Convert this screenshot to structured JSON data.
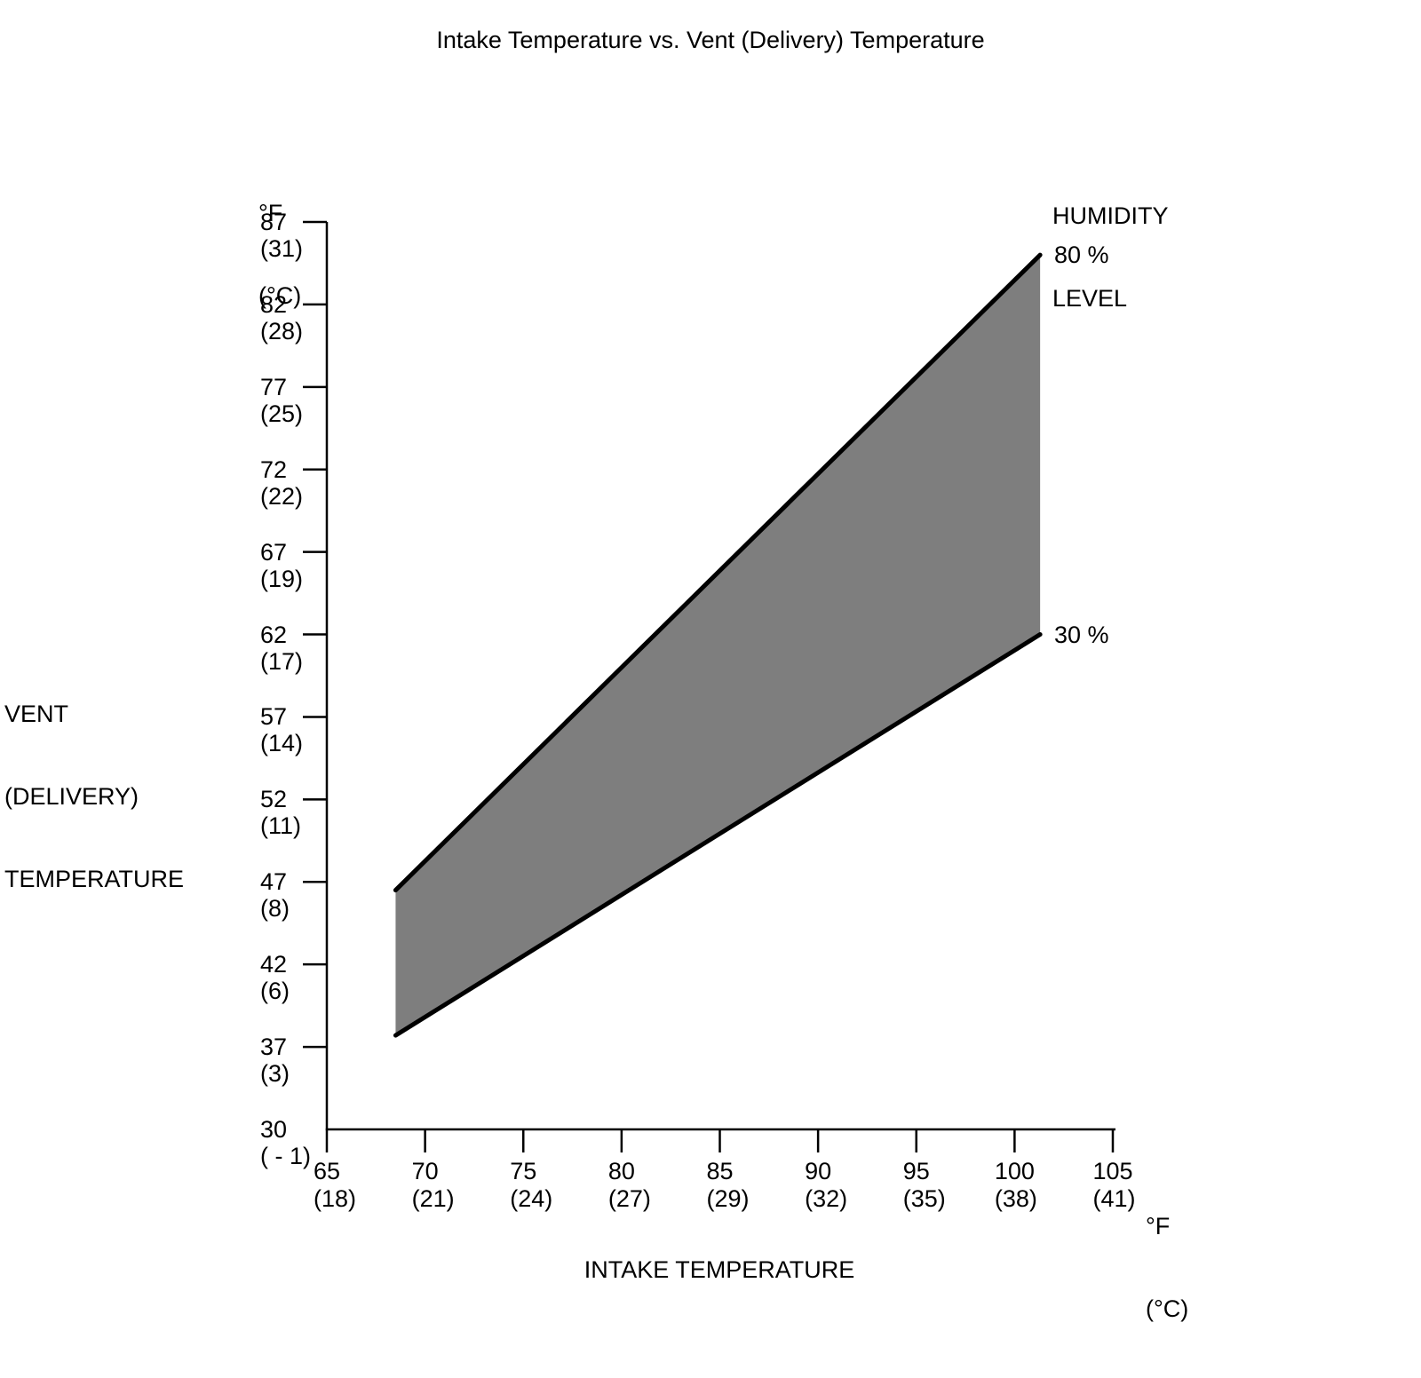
{
  "title": "Intake Temperature vs. Vent (Delivery) Temperature",
  "y_axis": {
    "unit_lines": [
      "°F",
      "(°C)"
    ],
    "axis_label_lines": [
      "VENT",
      "(DELIVERY)",
      "TEMPERATURE"
    ],
    "ticks": [
      {
        "f": "87",
        "c": "(31)",
        "value": 87
      },
      {
        "f": "82",
        "c": "(28)",
        "value": 82
      },
      {
        "f": "77",
        "c": "(25)",
        "value": 77
      },
      {
        "f": "72",
        "c": "(22)",
        "value": 72
      },
      {
        "f": "67",
        "c": "(19)",
        "value": 67
      },
      {
        "f": "62",
        "c": "(17)",
        "value": 62
      },
      {
        "f": "57",
        "c": "(14)",
        "value": 57
      },
      {
        "f": "52",
        "c": "(11)",
        "value": 52
      },
      {
        "f": "47",
        "c": "(8)",
        "value": 47
      },
      {
        "f": "42",
        "c": "(6)",
        "value": 42
      },
      {
        "f": "37",
        "c": "(3)",
        "value": 37
      },
      {
        "f": "30",
        "c": "( - 1)",
        "value": 30
      }
    ]
  },
  "x_axis": {
    "axis_label": "INTAKE TEMPERATURE",
    "unit_lines": [
      "°F",
      "(°C)"
    ],
    "ticks": [
      {
        "f": "65",
        "c": "(18)",
        "value": 65
      },
      {
        "f": "70",
        "c": "(21)",
        "value": 70
      },
      {
        "f": "75",
        "c": "(24)",
        "value": 75
      },
      {
        "f": "80",
        "c": "(27)",
        "value": 80
      },
      {
        "f": "85",
        "c": "(29)",
        "value": 85
      },
      {
        "f": "90",
        "c": "(32)",
        "value": 90
      },
      {
        "f": "95",
        "c": "(35)",
        "value": 95
      },
      {
        "f": "100",
        "c": "(38)",
        "value": 100
      },
      {
        "f": "105",
        "c": "(41)",
        "value": 105
      }
    ]
  },
  "legend": {
    "title_lines": [
      "HUMIDITY",
      "LEVEL"
    ],
    "upper_label": "80 %",
    "lower_label": "30 %"
  },
  "chart_data": {
    "type": "area",
    "title": "Intake Temperature vs. Vent (Delivery) Temperature",
    "xlabel": "INTAKE TEMPERATURE",
    "ylabel": "VENT (DELIVERY) TEMPERATURE",
    "x_unit": "°F (°C)",
    "y_unit": "°F (°C)",
    "xlim": [
      65,
      105
    ],
    "ylim": [
      30,
      87
    ],
    "grid": false,
    "legend_title": "HUMIDITY LEVEL",
    "series": [
      {
        "name": "80 % humidity (upper bound)",
        "humidity_pct": 80,
        "x": [
          68.5,
          101.3
        ],
        "y": [
          46.5,
          85.0
        ]
      },
      {
        "name": "30 % humidity (lower bound)",
        "humidity_pct": 30,
        "x": [
          68.5,
          101.3
        ],
        "y": [
          37.7,
          62.0
        ]
      }
    ],
    "band_fill_color": "#7e7e7e",
    "line_color": "#000000",
    "axis_color": "#000000"
  }
}
